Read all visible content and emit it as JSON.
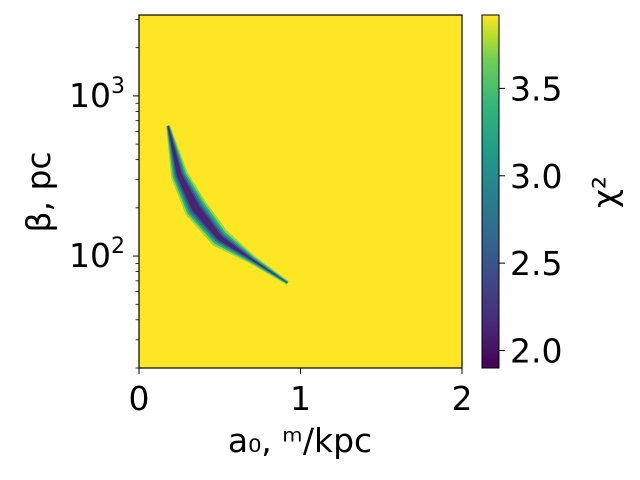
{
  "chart_data": {
    "type": "heatmap",
    "title": "",
    "xlabel": "a₀, ᵐ/kpc",
    "ylabel": "β, pc",
    "colorbar_label": "χ²",
    "x_range": [
      0,
      2
    ],
    "y_range": [
      20,
      3200
    ],
    "y_scale": "log",
    "x_ticks": [
      {
        "value": 0,
        "label": "0"
      },
      {
        "value": 1,
        "label": "1"
      },
      {
        "value": 2,
        "label": "2"
      }
    ],
    "y_ticks": [
      {
        "value": 100,
        "base": "10",
        "exp": "2"
      },
      {
        "value": 1000,
        "base": "10",
        "exp": "3"
      }
    ],
    "colorbar": {
      "range": [
        1.9,
        3.92
      ],
      "colormap": "viridis",
      "ticks": [
        {
          "value": 2.0,
          "label": "2.0"
        },
        {
          "value": 2.5,
          "label": "2.5"
        },
        {
          "value": 3.0,
          "label": "3.0"
        },
        {
          "value": 3.5,
          "label": "3.5"
        }
      ]
    },
    "background_value": 3.92,
    "low_chi2_band": {
      "description_points": [
        {
          "a0": 0.18,
          "beta": 650
        },
        {
          "a0": 0.25,
          "beta": 320
        },
        {
          "a0": 0.35,
          "beta": 200
        },
        {
          "a0": 0.5,
          "beta": 130
        },
        {
          "a0": 0.7,
          "beta": 95
        },
        {
          "a0": 0.92,
          "beta": 68
        }
      ],
      "min_value": 1.9,
      "min_at": {
        "a0": 0.35,
        "beta": 210
      }
    }
  }
}
